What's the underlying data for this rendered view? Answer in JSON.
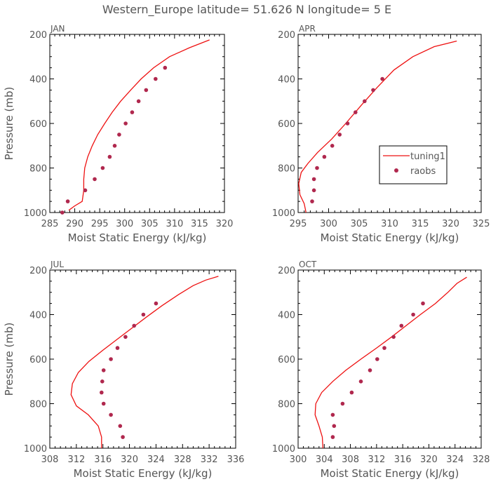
{
  "figure": {
    "title": "Western_Europe  latitude= 51.626 N longitude= 5 E"
  },
  "legend": {
    "model_label": "tuning1",
    "obs_label": "raobs",
    "placement": "right side of APR panel"
  },
  "colors": {
    "model_line": "#ee1111",
    "obs_marker": "#b0284e",
    "axis": "#000000",
    "text": "#555555"
  },
  "chart_data": [
    {
      "panel": "JAN",
      "type": "line",
      "title": "JAN",
      "xlabel": "Moist Static Energy (kJ/kg)",
      "ylabel": "Pressure (mb)",
      "xlim": [
        285,
        320
      ],
      "ylim": [
        1000,
        200
      ],
      "y_inverted": true,
      "xticks": [
        285,
        290,
        295,
        300,
        305,
        310,
        315,
        320
      ],
      "yticks": [
        1000,
        800,
        600,
        400,
        200
      ],
      "series": [
        {
          "name": "tuning1",
          "style": "line",
          "points": [
            [
              288.8,
              990
            ],
            [
              290,
              970
            ],
            [
              291.5,
              950
            ],
            [
              291.8,
              900
            ],
            [
              291.8,
              850
            ],
            [
              292,
              800
            ],
            [
              292.6,
              750
            ],
            [
              293.5,
              700
            ],
            [
              294.6,
              650
            ],
            [
              296,
              600
            ],
            [
              297.5,
              550
            ],
            [
              299.2,
              500
            ],
            [
              301.2,
              450
            ],
            [
              303.3,
              400
            ],
            [
              305.8,
              350
            ],
            [
              309,
              300
            ],
            [
              313,
              260
            ],
            [
              317,
              225
            ]
          ]
        },
        {
          "name": "raobs",
          "style": "marker",
          "points": [
            [
              287.5,
              1000
            ],
            [
              288.6,
              950
            ],
            [
              292.1,
              900
            ],
            [
              294,
              850
            ],
            [
              295.6,
              800
            ],
            [
              297,
              750
            ],
            [
              298,
              700
            ],
            [
              298.9,
              650
            ],
            [
              300.2,
              600
            ],
            [
              301.5,
              550
            ],
            [
              302.8,
              500
            ],
            [
              304.3,
              450
            ],
            [
              306.2,
              400
            ],
            [
              308.1,
              350
            ]
          ]
        }
      ]
    },
    {
      "panel": "APR",
      "type": "line",
      "title": "APR",
      "xlabel": "Moist Static Energy (kJ/kg)",
      "ylabel": "",
      "xlim": [
        295,
        325
      ],
      "ylim": [
        1000,
        200
      ],
      "y_inverted": true,
      "xticks": [
        295,
        300,
        305,
        310,
        315,
        320,
        325
      ],
      "yticks": [
        1000,
        800,
        600,
        400,
        200
      ],
      "series": [
        {
          "name": "tuning1",
          "style": "line",
          "points": [
            [
              296.3,
              1000
            ],
            [
              296,
              960
            ],
            [
              295.3,
              920
            ],
            [
              295.1,
              870
            ],
            [
              295.5,
              820
            ],
            [
              296.6,
              780
            ],
            [
              298.2,
              730
            ],
            [
              300.5,
              670
            ],
            [
              302.8,
              600
            ],
            [
              305.3,
              520
            ],
            [
              307.9,
              440
            ],
            [
              310.7,
              360
            ],
            [
              313.8,
              300
            ],
            [
              317.3,
              255
            ],
            [
              321,
              230
            ]
          ]
        },
        {
          "name": "raobs",
          "style": "marker",
          "points": [
            [
              297.3,
              950
            ],
            [
              297.6,
              900
            ],
            [
              297.6,
              850
            ],
            [
              298.1,
              800
            ],
            [
              299.3,
              750
            ],
            [
              300.6,
              700
            ],
            [
              301.8,
              650
            ],
            [
              303.1,
              600
            ],
            [
              304.4,
              550
            ],
            [
              305.9,
              500
            ],
            [
              307.3,
              450
            ],
            [
              308.8,
              400
            ]
          ]
        }
      ]
    },
    {
      "panel": "JUL",
      "type": "line",
      "title": "JUL",
      "xlabel": "Moist Static Energy (kJ/kg)",
      "ylabel": "Pressure (mb)",
      "xlim": [
        308,
        336
      ],
      "ylim": [
        1000,
        200
      ],
      "y_inverted": true,
      "xticks": [
        308,
        312,
        316,
        320,
        324,
        328,
        332,
        336
      ],
      "yticks": [
        1000,
        800,
        600,
        400,
        200
      ],
      "series": [
        {
          "name": "tuning1",
          "style": "line",
          "points": [
            [
              315.8,
              1000
            ],
            [
              315.8,
              950
            ],
            [
              315.3,
              900
            ],
            [
              313.8,
              850
            ],
            [
              312,
              810
            ],
            [
              311.2,
              760
            ],
            [
              311.4,
              710
            ],
            [
              312.3,
              660
            ],
            [
              313.9,
              610
            ],
            [
              316,
              560
            ],
            [
              318.2,
              510
            ],
            [
              320.4,
              460
            ],
            [
              322.6,
              410
            ],
            [
              324.9,
              360
            ],
            [
              327.4,
              310
            ],
            [
              329.6,
              270
            ],
            [
              331.5,
              245
            ],
            [
              333.4,
              228
            ]
          ]
        },
        {
          "name": "raobs",
          "style": "marker",
          "points": [
            [
              319,
              950
            ],
            [
              318.6,
              900
            ],
            [
              317.2,
              850
            ],
            [
              316.1,
              800
            ],
            [
              315.8,
              750
            ],
            [
              315.9,
              700
            ],
            [
              316.1,
              650
            ],
            [
              317.2,
              600
            ],
            [
              318.2,
              550
            ],
            [
              319.4,
              500
            ],
            [
              320.7,
              450
            ],
            [
              322.1,
              400
            ],
            [
              324,
              350
            ]
          ]
        }
      ]
    },
    {
      "panel": "OCT",
      "type": "line",
      "title": "OCT",
      "xlabel": "Moist Static Energy (kJ/kg)",
      "ylabel": "",
      "xlim": [
        300,
        328
      ],
      "ylim": [
        1000,
        200
      ],
      "y_inverted": true,
      "xticks": [
        300,
        304,
        308,
        312,
        316,
        320,
        324,
        328
      ],
      "yticks": [
        1000,
        800,
        600,
        400,
        200
      ],
      "series": [
        {
          "name": "tuning1",
          "style": "line",
          "points": [
            [
              303.8,
              1000
            ],
            [
              303.7,
              950
            ],
            [
              303.2,
              900
            ],
            [
              302.6,
              850
            ],
            [
              302.7,
              800
            ],
            [
              303.6,
              750
            ],
            [
              305.3,
              700
            ],
            [
              307.3,
              650
            ],
            [
              309.6,
              600
            ],
            [
              312,
              550
            ],
            [
              314.3,
              500
            ],
            [
              316.5,
              450
            ],
            [
              318.7,
              400
            ],
            [
              321,
              350
            ],
            [
              322.9,
              300
            ],
            [
              324.3,
              260
            ],
            [
              325.8,
              232
            ]
          ]
        },
        {
          "name": "raobs",
          "style": "marker",
          "points": [
            [
              305.3,
              950
            ],
            [
              305.5,
              900
            ],
            [
              305.3,
              850
            ],
            [
              306.8,
              800
            ],
            [
              308.2,
              750
            ],
            [
              309.6,
              700
            ],
            [
              311,
              650
            ],
            [
              312.1,
              600
            ],
            [
              313.2,
              550
            ],
            [
              314.6,
              500
            ],
            [
              315.8,
              450
            ],
            [
              317.6,
              400
            ],
            [
              319.1,
              350
            ]
          ]
        }
      ]
    }
  ]
}
